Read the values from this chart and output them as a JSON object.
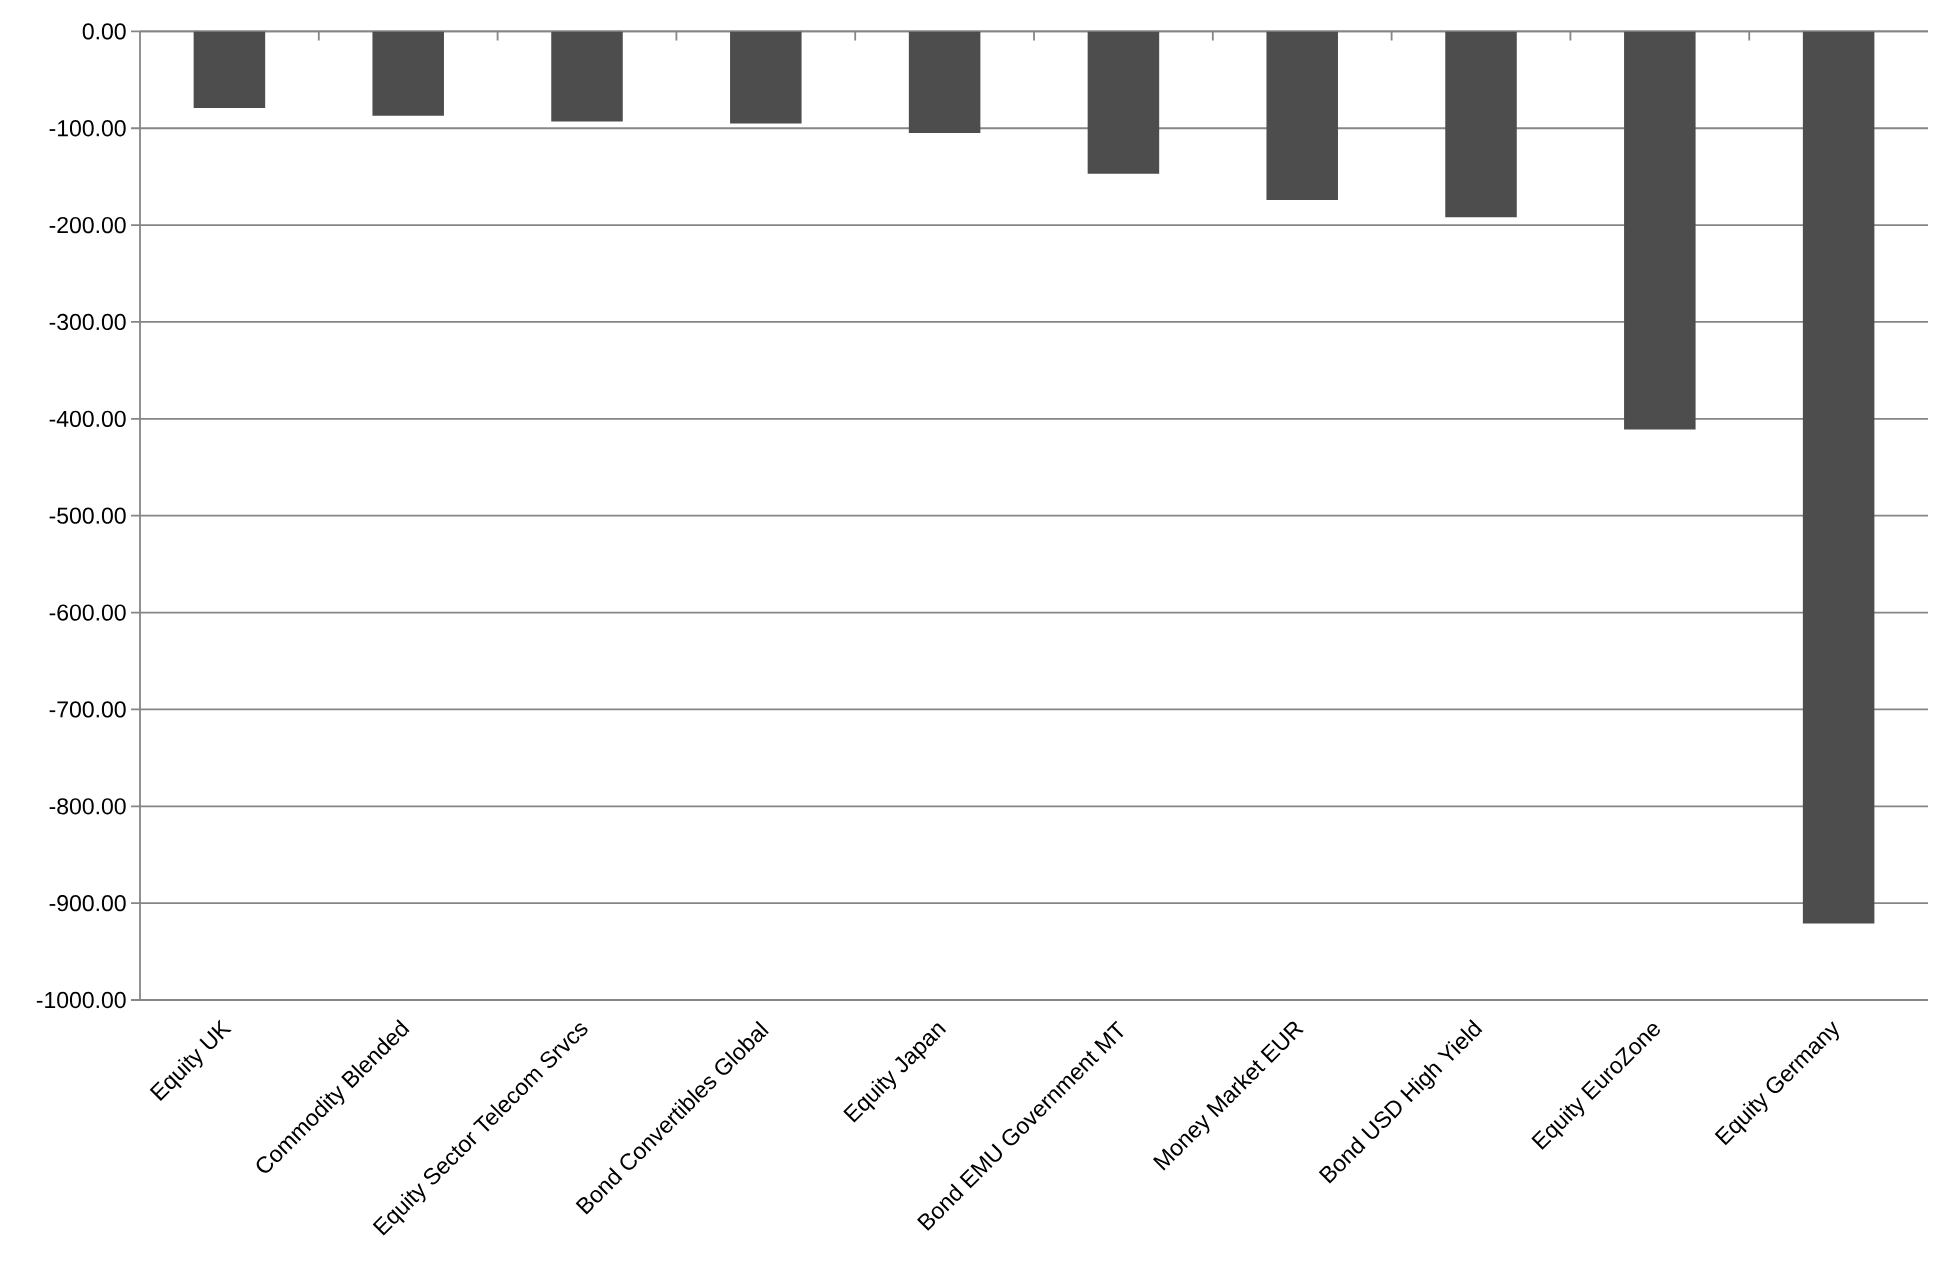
{
  "chart_data": {
    "type": "bar",
    "categories": [
      "Equity UK",
      "Commodity Blended",
      "Equity Sector Telecom Srvcs",
      "Bond Convertibles Global",
      "Equity Japan",
      "Bond EMU Government MT",
      "Money Market EUR",
      "Bond USD High Yield",
      "Equity EuroZone",
      "Equity Germany"
    ],
    "values": [
      -79,
      -87,
      -93,
      -95,
      -105,
      -147,
      -174,
      -192,
      -411,
      -921
    ],
    "color": "#4d4d4d",
    "ylim": [
      -1000,
      0
    ],
    "yticks": [
      {
        "value": 0,
        "label": "0.00"
      },
      {
        "value": -100,
        "label": "-100.00"
      },
      {
        "value": -200,
        "label": "-200.00"
      },
      {
        "value": -300,
        "label": "-300.00"
      },
      {
        "value": -400,
        "label": "-400.00"
      },
      {
        "value": -500,
        "label": "-500.00"
      },
      {
        "value": -600,
        "label": "-600.00"
      },
      {
        "value": -700,
        "label": "-700.00"
      },
      {
        "value": -800,
        "label": "-800.00"
      },
      {
        "value": -900,
        "label": "-900.00"
      },
      {
        "value": -1000,
        "label": "-1000.00"
      }
    ],
    "grid": "y"
  }
}
